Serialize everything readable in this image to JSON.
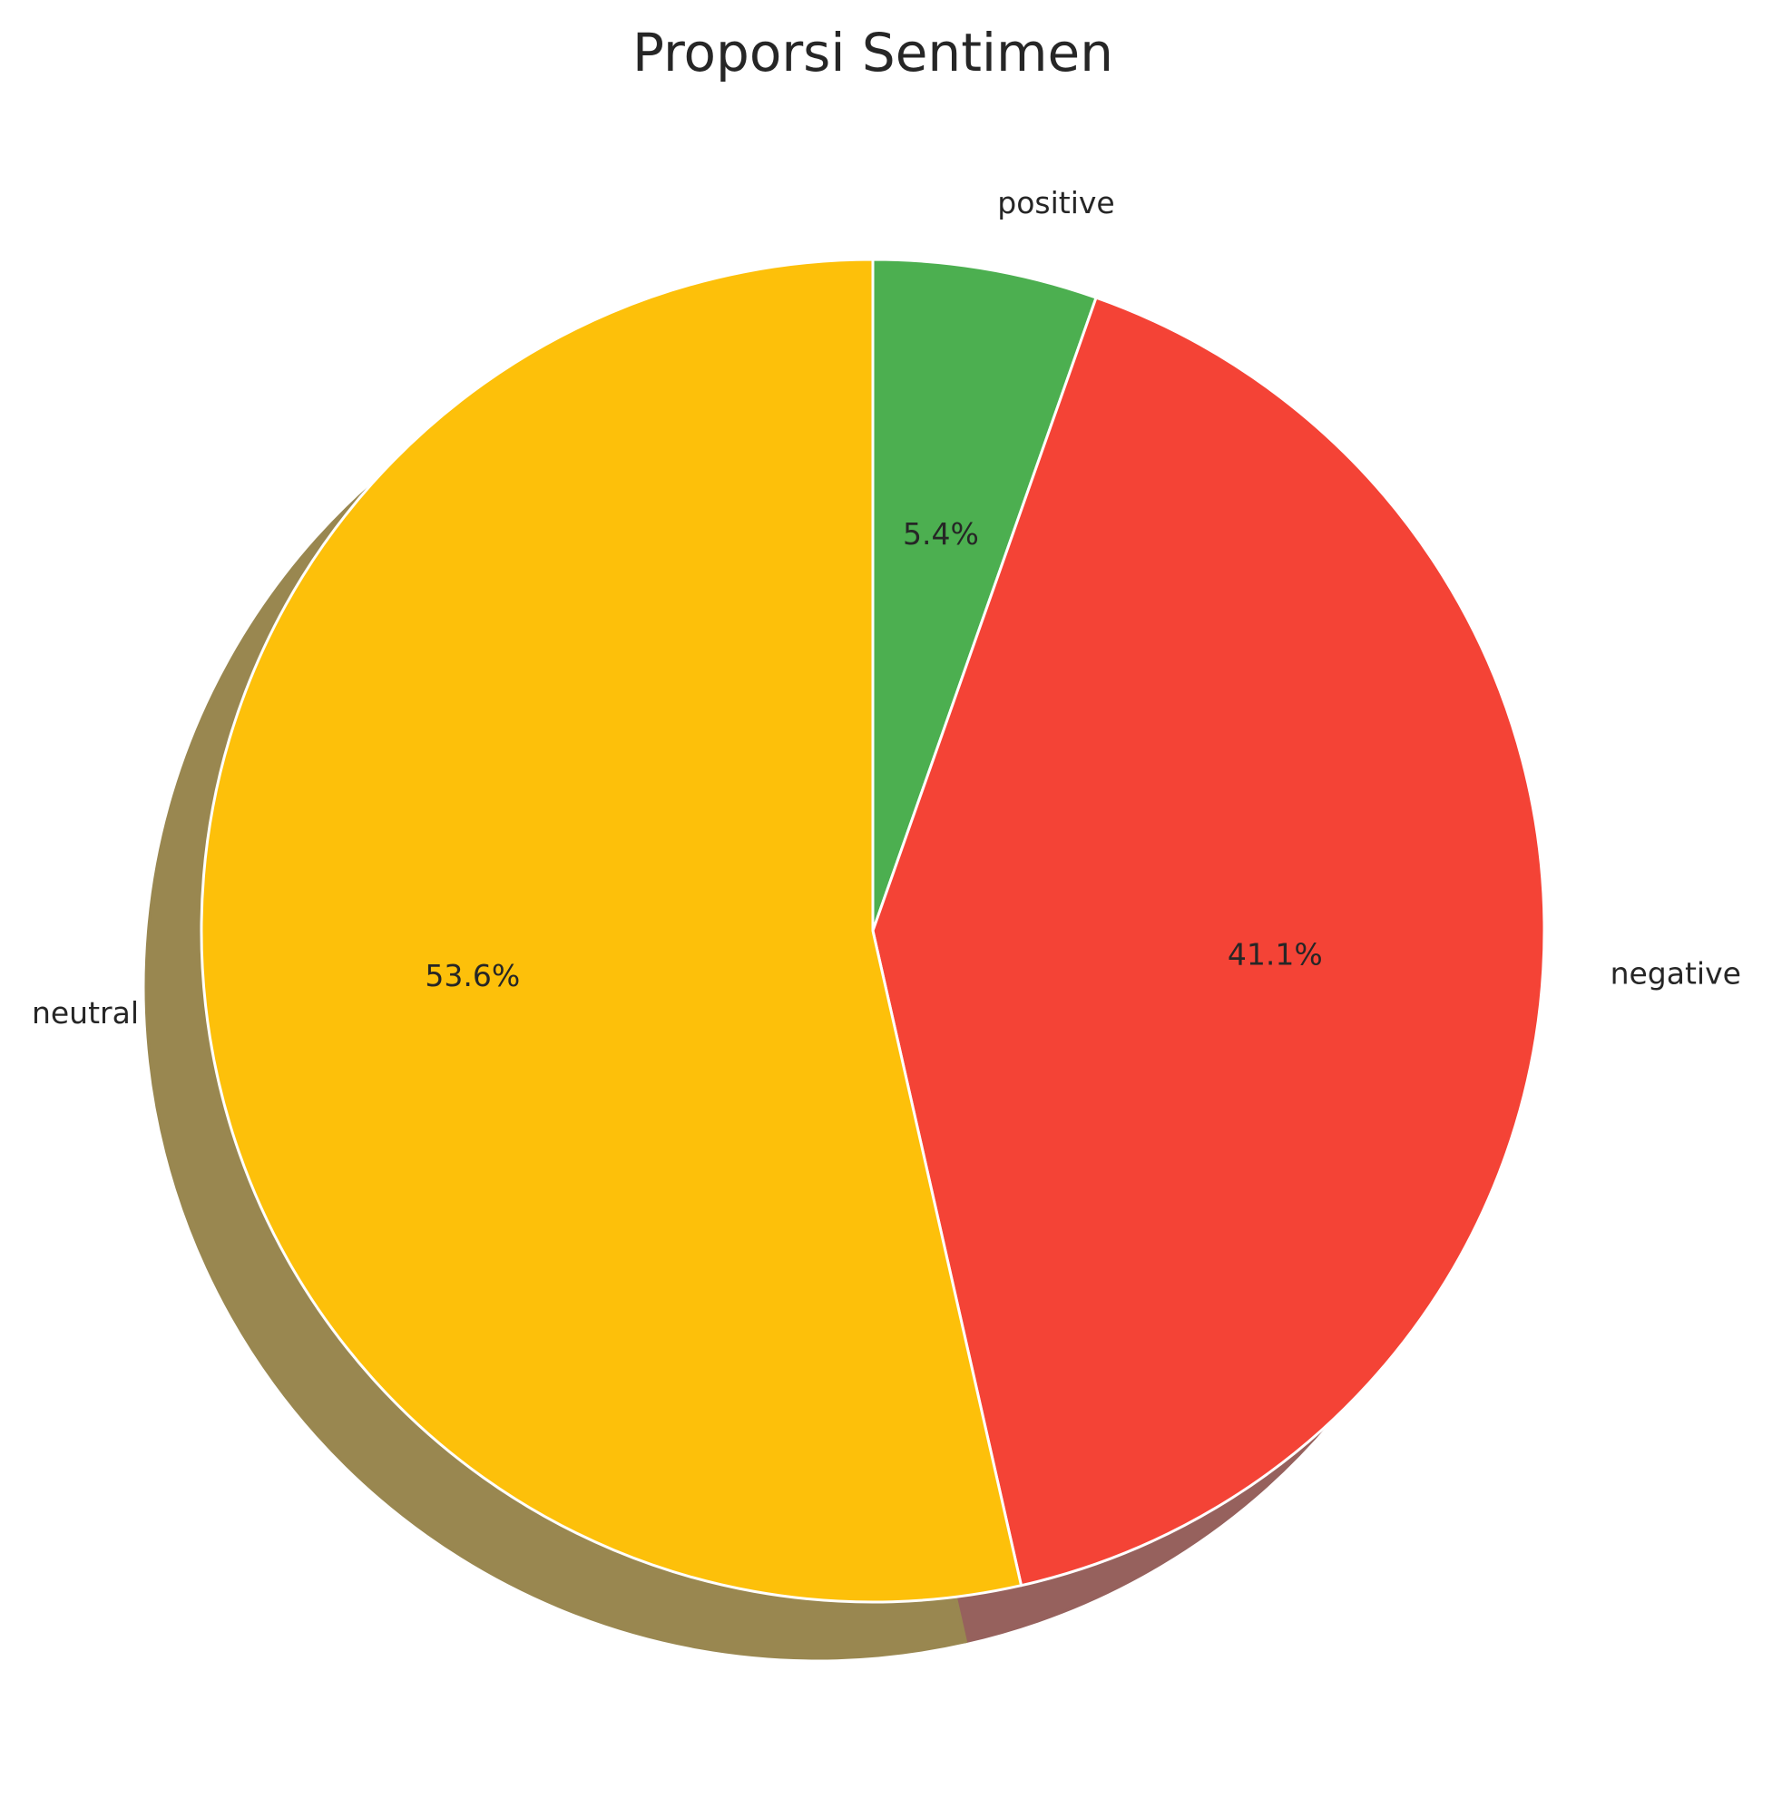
{
  "chart_data": {
    "type": "pie",
    "title": "Proporsi Sentimen",
    "start_angle_deg": 90,
    "direction": "clockwise",
    "shadow": true,
    "slices": [
      {
        "label": "positive",
        "value": 5.4,
        "pct_label": "5.4%",
        "color": "#4caf50"
      },
      {
        "label": "negative",
        "value": 41.1,
        "pct_label": "41.1%",
        "color": "#f44336"
      },
      {
        "label": "neutral",
        "value": 53.6,
        "pct_label": "53.6%",
        "color": "#fdc00a"
      }
    ]
  }
}
